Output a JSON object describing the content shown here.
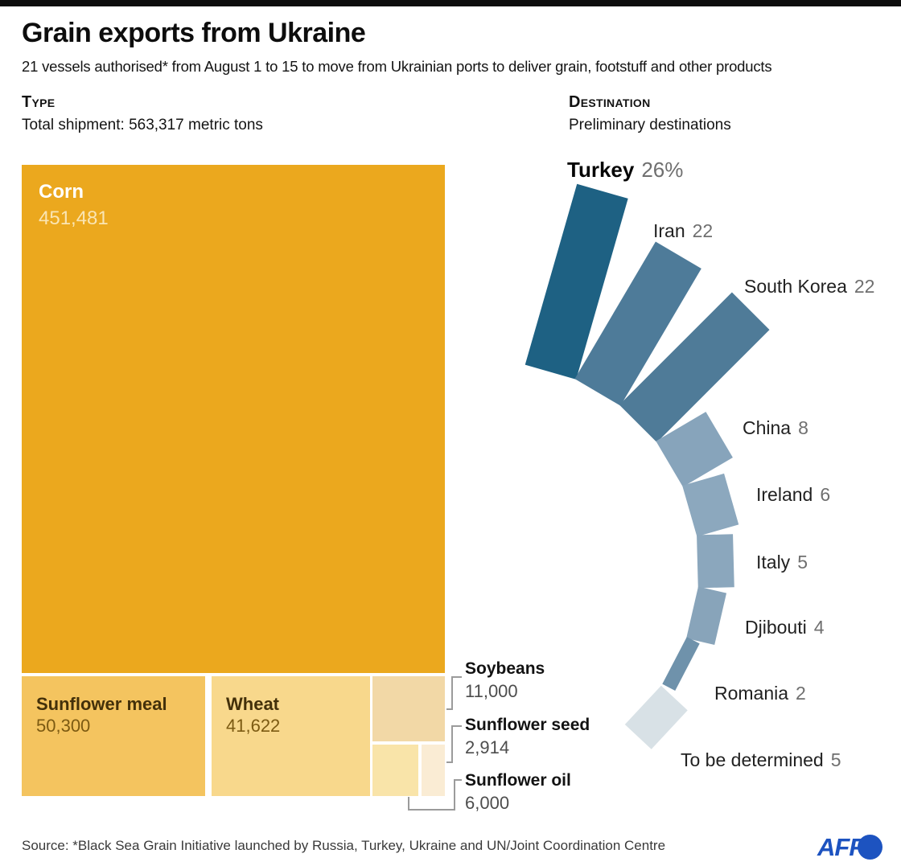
{
  "header": {
    "title": "Grain exports from Ukraine",
    "subtitle": "21 vessels authorised* from August 1 to 15 to move from Ukrainian ports to deliver grain, footstuff and other products"
  },
  "sections": {
    "type_label": "Type",
    "type_total": "Total shipment: 563,317 metric tons",
    "dest_label": "Destination",
    "dest_subtitle": "Preliminary destinations"
  },
  "chart_data": [
    {
      "type": "treemap",
      "title": "Type",
      "subtitle": "Total shipment: 563,317 metric tons",
      "units": "metric tons",
      "total": 563317,
      "items": [
        {
          "id": "corn",
          "name": "Corn",
          "value": 451481,
          "value_label": "451,481",
          "color": "#EBA81E"
        },
        {
          "id": "sunflower-meal",
          "name": "Sunflower meal",
          "value": 50300,
          "value_label": "50,300",
          "color": "#F4C45F"
        },
        {
          "id": "wheat",
          "name": "Wheat",
          "value": 41622,
          "value_label": "41,622",
          "color": "#F8D88C"
        },
        {
          "id": "soybeans",
          "name": "Soybeans",
          "value": 11000,
          "value_label": "11,000",
          "color": "#F2D8A6"
        },
        {
          "id": "sunflower-oil",
          "name": "Sunflower oil",
          "value": 6000,
          "value_label": "6,000",
          "color": "#F9E4A9"
        },
        {
          "id": "sunflower-seed",
          "name": "Sunflower seed",
          "value": 2914,
          "value_label": "2,914",
          "color": "#FAECD4"
        }
      ]
    },
    {
      "type": "radial-fan",
      "title": "Destination",
      "subtitle": "Preliminary destinations",
      "units": "percent of shipments",
      "items": [
        {
          "id": "turkey",
          "name": "Turkey",
          "value": 26,
          "value_label": "26%",
          "color": "#1E6183"
        },
        {
          "id": "iran",
          "name": "Iran",
          "value": 22,
          "value_label": "22",
          "color": "#4E7B99"
        },
        {
          "id": "south-korea",
          "name": "South Korea",
          "value": 22,
          "value_label": "22",
          "color": "#4F7B98"
        },
        {
          "id": "china",
          "name": "China",
          "value": 8,
          "value_label": "8",
          "color": "#87A4BB"
        },
        {
          "id": "ireland",
          "name": "Ireland",
          "value": 6,
          "value_label": "6",
          "color": "#8CA8BE"
        },
        {
          "id": "italy",
          "name": "Italy",
          "value": 5,
          "value_label": "5",
          "color": "#8BA7BD"
        },
        {
          "id": "djibouti",
          "name": "Djibouti",
          "value": 4,
          "value_label": "4",
          "color": "#88A4BA"
        },
        {
          "id": "romania",
          "name": "Romania",
          "value": 2,
          "value_label": "2",
          "color": "#6F92AB"
        },
        {
          "id": "to-be-determined",
          "name": "To be determined",
          "value": 5,
          "value_label": "5",
          "color": "#D8E1E6"
        }
      ]
    }
  ],
  "footer": {
    "source": "Source: *Black Sea Grain Initiative launched by Russia, Turkey, Ukraine and UN/Joint Coordination Centre",
    "logo_text": "AFP"
  }
}
